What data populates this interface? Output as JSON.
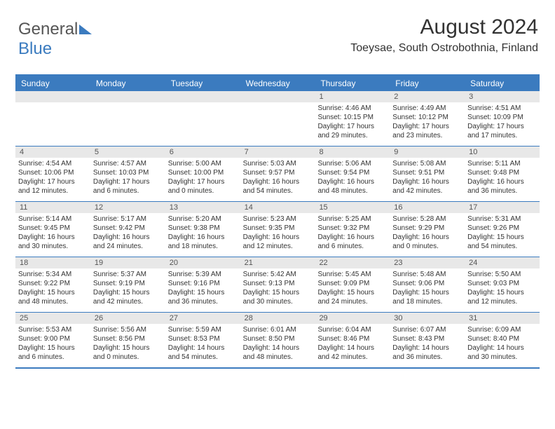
{
  "logo": {
    "part1": "General",
    "part2": "Blue"
  },
  "title": "August 2024",
  "location": "Toeysae, South Ostrobothnia, Finland",
  "day_names": [
    "Sunday",
    "Monday",
    "Tuesday",
    "Wednesday",
    "Thursday",
    "Friday",
    "Saturday"
  ],
  "colors": {
    "accent": "#3b7bbf",
    "header_text": "#ffffff",
    "date_bar_bg": "#e8e8e8",
    "text": "#333333",
    "background": "#ffffff"
  },
  "weeks": [
    [
      {
        "date": "",
        "lines": []
      },
      {
        "date": "",
        "lines": []
      },
      {
        "date": "",
        "lines": []
      },
      {
        "date": "",
        "lines": []
      },
      {
        "date": "1",
        "lines": [
          "Sunrise: 4:46 AM",
          "Sunset: 10:15 PM",
          "Daylight: 17 hours and 29 minutes."
        ]
      },
      {
        "date": "2",
        "lines": [
          "Sunrise: 4:49 AM",
          "Sunset: 10:12 PM",
          "Daylight: 17 hours and 23 minutes."
        ]
      },
      {
        "date": "3",
        "lines": [
          "Sunrise: 4:51 AM",
          "Sunset: 10:09 PM",
          "Daylight: 17 hours and 17 minutes."
        ]
      }
    ],
    [
      {
        "date": "4",
        "lines": [
          "Sunrise: 4:54 AM",
          "Sunset: 10:06 PM",
          "Daylight: 17 hours and 12 minutes."
        ]
      },
      {
        "date": "5",
        "lines": [
          "Sunrise: 4:57 AM",
          "Sunset: 10:03 PM",
          "Daylight: 17 hours and 6 minutes."
        ]
      },
      {
        "date": "6",
        "lines": [
          "Sunrise: 5:00 AM",
          "Sunset: 10:00 PM",
          "Daylight: 17 hours and 0 minutes."
        ]
      },
      {
        "date": "7",
        "lines": [
          "Sunrise: 5:03 AM",
          "Sunset: 9:57 PM",
          "Daylight: 16 hours and 54 minutes."
        ]
      },
      {
        "date": "8",
        "lines": [
          "Sunrise: 5:06 AM",
          "Sunset: 9:54 PM",
          "Daylight: 16 hours and 48 minutes."
        ]
      },
      {
        "date": "9",
        "lines": [
          "Sunrise: 5:08 AM",
          "Sunset: 9:51 PM",
          "Daylight: 16 hours and 42 minutes."
        ]
      },
      {
        "date": "10",
        "lines": [
          "Sunrise: 5:11 AM",
          "Sunset: 9:48 PM",
          "Daylight: 16 hours and 36 minutes."
        ]
      }
    ],
    [
      {
        "date": "11",
        "lines": [
          "Sunrise: 5:14 AM",
          "Sunset: 9:45 PM",
          "Daylight: 16 hours and 30 minutes."
        ]
      },
      {
        "date": "12",
        "lines": [
          "Sunrise: 5:17 AM",
          "Sunset: 9:42 PM",
          "Daylight: 16 hours and 24 minutes."
        ]
      },
      {
        "date": "13",
        "lines": [
          "Sunrise: 5:20 AM",
          "Sunset: 9:38 PM",
          "Daylight: 16 hours and 18 minutes."
        ]
      },
      {
        "date": "14",
        "lines": [
          "Sunrise: 5:23 AM",
          "Sunset: 9:35 PM",
          "Daylight: 16 hours and 12 minutes."
        ]
      },
      {
        "date": "15",
        "lines": [
          "Sunrise: 5:25 AM",
          "Sunset: 9:32 PM",
          "Daylight: 16 hours and 6 minutes."
        ]
      },
      {
        "date": "16",
        "lines": [
          "Sunrise: 5:28 AM",
          "Sunset: 9:29 PM",
          "Daylight: 16 hours and 0 minutes."
        ]
      },
      {
        "date": "17",
        "lines": [
          "Sunrise: 5:31 AM",
          "Sunset: 9:26 PM",
          "Daylight: 15 hours and 54 minutes."
        ]
      }
    ],
    [
      {
        "date": "18",
        "lines": [
          "Sunrise: 5:34 AM",
          "Sunset: 9:22 PM",
          "Daylight: 15 hours and 48 minutes."
        ]
      },
      {
        "date": "19",
        "lines": [
          "Sunrise: 5:37 AM",
          "Sunset: 9:19 PM",
          "Daylight: 15 hours and 42 minutes."
        ]
      },
      {
        "date": "20",
        "lines": [
          "Sunrise: 5:39 AM",
          "Sunset: 9:16 PM",
          "Daylight: 15 hours and 36 minutes."
        ]
      },
      {
        "date": "21",
        "lines": [
          "Sunrise: 5:42 AM",
          "Sunset: 9:13 PM",
          "Daylight: 15 hours and 30 minutes."
        ]
      },
      {
        "date": "22",
        "lines": [
          "Sunrise: 5:45 AM",
          "Sunset: 9:09 PM",
          "Daylight: 15 hours and 24 minutes."
        ]
      },
      {
        "date": "23",
        "lines": [
          "Sunrise: 5:48 AM",
          "Sunset: 9:06 PM",
          "Daylight: 15 hours and 18 minutes."
        ]
      },
      {
        "date": "24",
        "lines": [
          "Sunrise: 5:50 AM",
          "Sunset: 9:03 PM",
          "Daylight: 15 hours and 12 minutes."
        ]
      }
    ],
    [
      {
        "date": "25",
        "lines": [
          "Sunrise: 5:53 AM",
          "Sunset: 9:00 PM",
          "Daylight: 15 hours and 6 minutes."
        ]
      },
      {
        "date": "26",
        "lines": [
          "Sunrise: 5:56 AM",
          "Sunset: 8:56 PM",
          "Daylight: 15 hours and 0 minutes."
        ]
      },
      {
        "date": "27",
        "lines": [
          "Sunrise: 5:59 AM",
          "Sunset: 8:53 PM",
          "Daylight: 14 hours and 54 minutes."
        ]
      },
      {
        "date": "28",
        "lines": [
          "Sunrise: 6:01 AM",
          "Sunset: 8:50 PM",
          "Daylight: 14 hours and 48 minutes."
        ]
      },
      {
        "date": "29",
        "lines": [
          "Sunrise: 6:04 AM",
          "Sunset: 8:46 PM",
          "Daylight: 14 hours and 42 minutes."
        ]
      },
      {
        "date": "30",
        "lines": [
          "Sunrise: 6:07 AM",
          "Sunset: 8:43 PM",
          "Daylight: 14 hours and 36 minutes."
        ]
      },
      {
        "date": "31",
        "lines": [
          "Sunrise: 6:09 AM",
          "Sunset: 8:40 PM",
          "Daylight: 14 hours and 30 minutes."
        ]
      }
    ]
  ]
}
